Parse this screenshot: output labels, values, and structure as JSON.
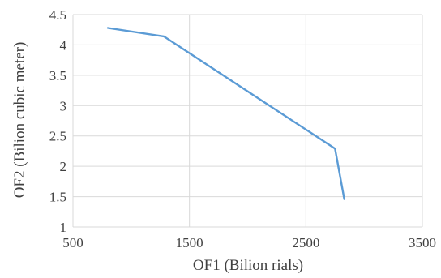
{
  "chart_data": {
    "type": "line",
    "title": "",
    "xlabel": "OF1 (Bilion rials)",
    "ylabel": "OF2 (Bilion cubic meter)",
    "xlim": [
      500,
      3500
    ],
    "ylim": [
      1,
      4.5
    ],
    "xticks": [
      500,
      1500,
      2500,
      3500
    ],
    "yticks": [
      1,
      1.5,
      2,
      2.5,
      3,
      3.5,
      4,
      4.5
    ],
    "grid": true,
    "legend": "none",
    "series": [
      {
        "color": "#5b9bd5",
        "x": [
          800,
          1280,
          2750,
          2830
        ],
        "y": [
          4.28,
          4.14,
          2.29,
          1.46
        ]
      }
    ]
  }
}
